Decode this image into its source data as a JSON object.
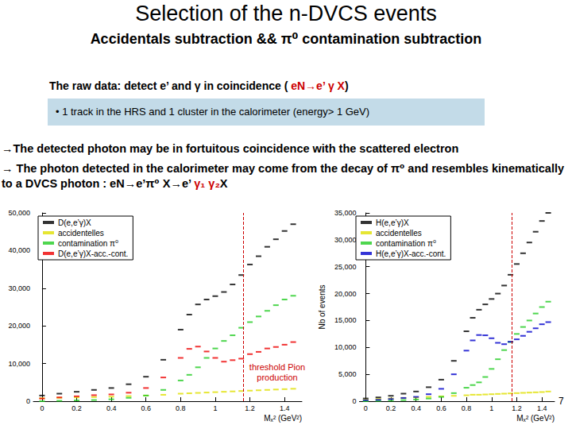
{
  "slide": {
    "title": "Selection of the n-DVCS events",
    "subtitle": "Accidentals subtraction && π⁰ contamination subtraction",
    "intro": [
      {
        "text": "The raw data: detect e’ and γ in coincidence ( ",
        "color": "#000000"
      },
      {
        "text": "eN→e’ γ X",
        "color": "#cc0000"
      },
      {
        "text": ")",
        "color": "#000000"
      }
    ],
    "box": "• 1 track in the HRS and 1 cluster in the calorimeter (energy> 1 GeV)",
    "points": [
      [
        {
          "text": "→The detected photon may be in fortuitous coincidence with the scattered electron",
          "color": "#000000"
        }
      ],
      [
        {
          "text": "→ The photon detected in the calorimeter may come from the decay of π⁰ and resembles kinematically to a DVCS photon : eN→e’π⁰ X→e’ ",
          "color": "#000000"
        },
        {
          "text": "γ₁ γ₂",
          "color": "#cc0000"
        },
        {
          "text": "X",
          "color": "#000000"
        }
      ]
    ],
    "page": "7"
  },
  "chart_data": [
    {
      "type": "scatter",
      "marker": "dash",
      "legend": "top-left",
      "grid": false,
      "xlabel": "Mₓ² (GeV²)",
      "x": [
        0,
        0.1,
        0.2,
        0.3,
        0.4,
        0.5,
        0.6,
        0.7,
        0.8,
        0.85,
        0.9,
        0.95,
        1.0,
        1.05,
        1.1,
        1.15,
        1.2,
        1.25,
        1.3,
        1.35,
        1.4,
        1.45
      ],
      "xlim": [
        -0.05,
        1.5
      ],
      "xticks": [
        0,
        0.2,
        0.4,
        0.6,
        0.8,
        1,
        1.2,
        1.4
      ],
      "ylim": [
        0,
        50000
      ],
      "yticks": [
        0,
        10000,
        20000,
        30000,
        40000,
        50000
      ],
      "vline": 1.16,
      "annotation": "threshold Pion production",
      "series": [
        {
          "name": "D(e,e’γ)X",
          "color": "#000000",
          "values": [
            1500,
            2000,
            2500,
            3000,
            3500,
            4500,
            6500,
            11000,
            19000,
            23000,
            25700,
            27000,
            27900,
            29000,
            31000,
            33500,
            36300,
            38500,
            41000,
            43000,
            45200,
            47000
          ]
        },
        {
          "name": "accidentelles",
          "color": "#e0e000",
          "values": [
            800,
            900,
            1000,
            1100,
            1200,
            1350,
            1500,
            1700,
            2000,
            2100,
            2200,
            2300,
            2400,
            2500,
            2600,
            2700,
            2800,
            2900,
            3000,
            3100,
            3200,
            3300
          ]
        },
        {
          "name": "contamination π⁰",
          "color": "#22cc22",
          "values": [
            0,
            100,
            200,
            300,
            500,
            900,
            1500,
            3000,
            5500,
            7000,
            9000,
            11500,
            14000,
            16000,
            17500,
            19500,
            21000,
            22500,
            24000,
            25500,
            27000,
            28000
          ]
        },
        {
          "name": "D(e,e’γ)X-acc.-cont.",
          "color": "#ee0000",
          "values": [
            700,
            1000,
            1300,
            1600,
            1800,
            2250,
            3500,
            6300,
            11500,
            13900,
            14500,
            13200,
            11500,
            10500,
            10900,
            11300,
            12500,
            13100,
            14000,
            14400,
            15000,
            15700
          ]
        }
      ]
    },
    {
      "type": "scatter",
      "marker": "dash",
      "legend": "top-left",
      "grid": false,
      "xlabel": "Mₓ² (GeV²)",
      "ylabel": "Nb of events",
      "x": [
        0,
        0.1,
        0.2,
        0.3,
        0.4,
        0.5,
        0.6,
        0.7,
        0.8,
        0.85,
        0.9,
        0.95,
        1.0,
        1.05,
        1.1,
        1.15,
        1.2,
        1.25,
        1.3,
        1.35,
        1.4,
        1.45
      ],
      "xlim": [
        -0.05,
        1.5
      ],
      "xticks": [
        0,
        0.2,
        0.4,
        0.6,
        0.8,
        1,
        1.2,
        1.4
      ],
      "ylim": [
        0,
        35000
      ],
      "yticks": [
        0,
        5000,
        10000,
        15000,
        20000,
        25000,
        30000,
        35000
      ],
      "vline": 1.16,
      "series": [
        {
          "name": "H(e,e’γ)X",
          "color": "#000000",
          "values": [
            500,
            700,
            1000,
            1400,
            1800,
            2600,
            4000,
            7500,
            13000,
            15500,
            17000,
            18000,
            19000,
            20000,
            21500,
            23500,
            25500,
            27500,
            29500,
            31500,
            33500,
            35000
          ]
        },
        {
          "name": "accidentelles",
          "color": "#e0e000",
          "values": [
            300,
            400,
            500,
            600,
            700,
            800,
            900,
            1000,
            1100,
            1200,
            1200,
            1250,
            1300,
            1350,
            1400,
            1450,
            1500,
            1550,
            1600,
            1650,
            1700,
            1800
          ]
        },
        {
          "name": "contamination π⁰",
          "color": "#22cc22",
          "values": [
            0,
            50,
            100,
            200,
            300,
            500,
            800,
            1500,
            2500,
            3000,
            3500,
            4500,
            6000,
            7800,
            9500,
            11000,
            12500,
            13800,
            15000,
            16300,
            17500,
            18500
          ]
        },
        {
          "name": "H(e,e’γ)X-acc.-cont.",
          "color": "#0000cc",
          "values": [
            200,
            250,
            400,
            600,
            800,
            1300,
            2300,
            5000,
            9400,
            11300,
            12300,
            12250,
            11700,
            10850,
            10600,
            11050,
            11500,
            12150,
            12900,
            13550,
            14300,
            14700
          ]
        }
      ]
    }
  ]
}
